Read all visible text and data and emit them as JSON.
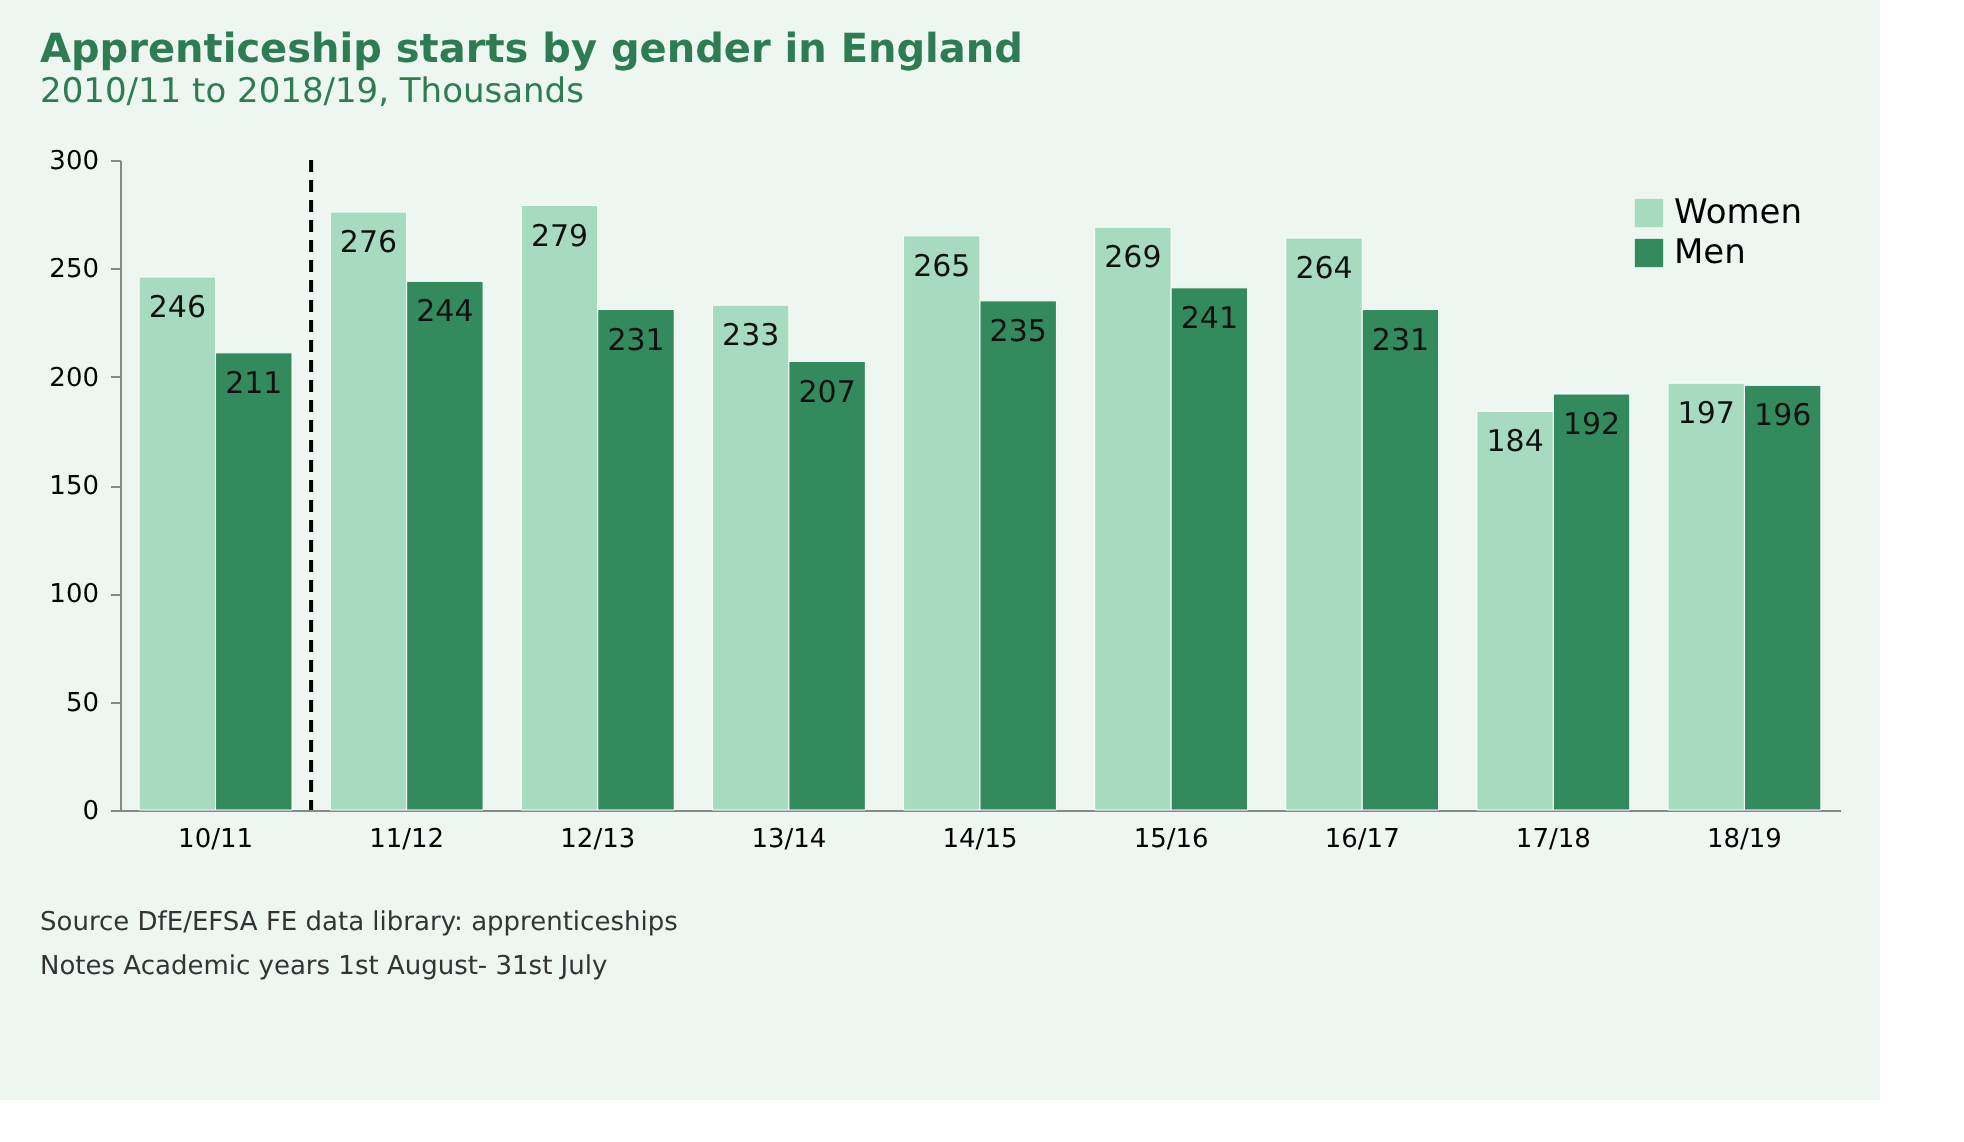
{
  "chart_data": {
    "type": "bar",
    "title": "Apprenticeship  starts by gender in England",
    "subtitle": "2010/11 to 2018/19, Thousands",
    "categories": [
      "10/11",
      "11/12",
      "12/13",
      "13/14",
      "14/15",
      "15/16",
      "16/17",
      "17/18",
      "18/19"
    ],
    "series": [
      {
        "name": "Women",
        "color": "#a6dbbf",
        "values": [
          246,
          276,
          279,
          233,
          265,
          269,
          264,
          184,
          197
        ]
      },
      {
        "name": "Men",
        "color": "#338a5c",
        "values": [
          211,
          244,
          231,
          207,
          235,
          241,
          231,
          192,
          196
        ]
      }
    ],
    "ylim": [
      0,
      300
    ],
    "yticks": [
      0,
      50,
      100,
      150,
      200,
      250,
      300
    ],
    "grid": false,
    "legend": "top right",
    "data_labels": true,
    "annotations": [
      "Source DfE/EFSA  FE data library: apprenticeships",
      "Notes Academic  years 1st August- 31st July"
    ]
  }
}
